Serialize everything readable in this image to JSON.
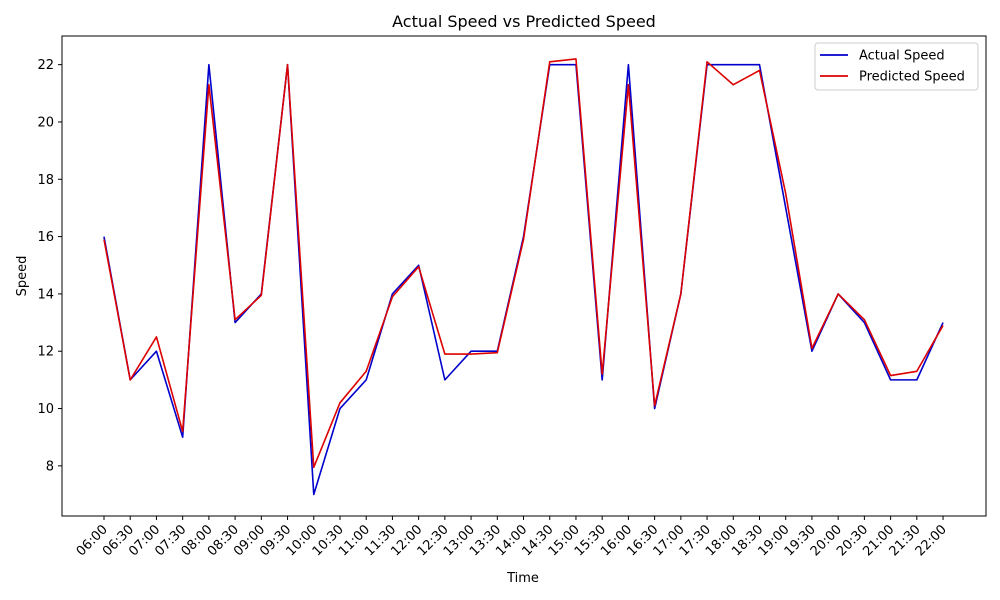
{
  "chart_data": {
    "type": "line",
    "title": "Actual Speed vs Predicted Speed",
    "xlabel": "Time",
    "ylabel": "Speed",
    "ylim": [
      6.25,
      23.0
    ],
    "yticks": [
      8,
      10,
      12,
      14,
      16,
      18,
      20,
      22
    ],
    "grid": false,
    "legend_position": "top-right",
    "categories": [
      "06:00",
      "06:30",
      "07:00",
      "07:30",
      "08:00",
      "08:30",
      "09:00",
      "09:30",
      "10:00",
      "10:30",
      "11:00",
      "11:30",
      "12:00",
      "12:30",
      "13:00",
      "13:30",
      "14:00",
      "14:30",
      "15:00",
      "15:30",
      "16:00",
      "16:30",
      "17:00",
      "17:30",
      "18:00",
      "18:30",
      "19:00",
      "19:30",
      "20:00",
      "20:30",
      "21:00",
      "21:30",
      "22:00"
    ],
    "series": [
      {
        "name": "Actual Speed",
        "color": "#0000cc",
        "values": [
          16,
          11,
          12,
          9,
          22,
          13,
          14,
          22,
          7,
          10,
          11,
          14,
          15,
          11,
          12,
          12,
          16,
          22,
          22,
          11,
          22,
          10,
          14,
          22,
          22,
          22,
          17,
          12,
          14,
          13,
          11,
          11,
          13
        ]
      },
      {
        "name": "Predicted Speed",
        "color": "#dd0000",
        "values": [
          15.9,
          11.0,
          12.5,
          9.2,
          21.3,
          13.1,
          13.95,
          22.0,
          7.95,
          10.2,
          11.3,
          13.9,
          14.95,
          11.9,
          11.9,
          11.95,
          15.9,
          22.1,
          22.2,
          11.2,
          21.3,
          10.1,
          14.0,
          22.1,
          21.3,
          21.8,
          17.5,
          12.1,
          14.0,
          13.1,
          11.15,
          11.3,
          12.9
        ]
      }
    ]
  }
}
